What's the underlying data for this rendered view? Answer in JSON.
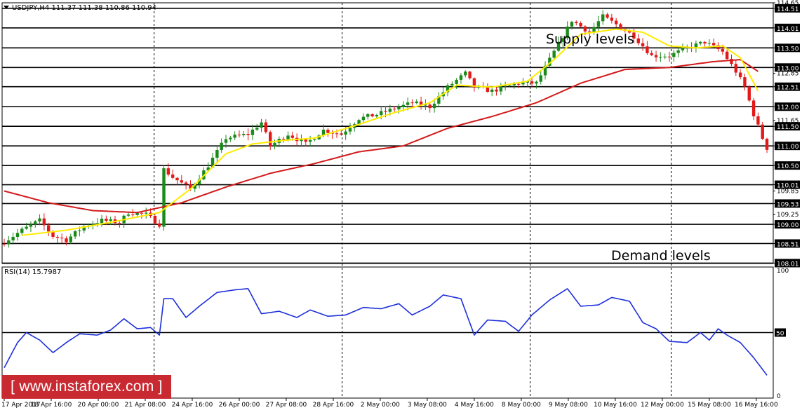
{
  "header": {
    "symbol_line": "USDJPY,H4  111.37 111.38 110.86 110.94",
    "rsi_label": "RSI(14) 15.7987"
  },
  "annotations": {
    "supply": "Supply levels",
    "demand": "Demand levels"
  },
  "watermark": {
    "text": "[ www.instaforex.com ]"
  },
  "colors": {
    "bull": "#1a8a1a",
    "bear": "#e31919",
    "fast_ma": "#ffeb00",
    "slow_ma": "#d21a1a",
    "rsi": "#1c2fd9",
    "levels": "#000000",
    "watermark_bg": "#c92a32"
  },
  "chart_data": [
    {
      "type": "candlestick",
      "symbol": "USDJPY",
      "timeframe": "H4",
      "ylim": [
        108.0,
        114.65
      ],
      "y_ticks": [
        "114.65",
        "114.51",
        "114.01",
        "113.50",
        "113.00",
        "112.85",
        "112.51",
        "112.00",
        "111.65",
        "111.50",
        "111.00",
        "110.50",
        "110.01",
        "109.85",
        "109.53",
        "109.25",
        "109.00",
        "108.51",
        "108.01"
      ],
      "level_lines": [
        114.51,
        114.01,
        113.5,
        113.0,
        112.51,
        112.0,
        111.5,
        111.0,
        110.5,
        110.01,
        109.53,
        109.0,
        108.51,
        108.01
      ],
      "x_labels": [
        "17 Apr 2017",
        "18 Apr 16:00",
        "20 Apr 00:00",
        "21 Apr 08:00",
        "24 Apr 16:00",
        "26 Apr 00:00",
        "27 Apr 08:00",
        "28 Apr 16:00",
        "2 May 00:00",
        "3 May 08:00",
        "4 May 16:00",
        "8 May 00:00",
        "9 May 08:00",
        "10 May 16:00",
        "12 May 00:00",
        "15 May 08:00",
        "16 May 16:00"
      ],
      "session_separators": [
        "21 Apr 08:00",
        "28 Apr 16:00",
        "8 May 00:00",
        "12 May 00:00"
      ],
      "close_keypoints": [
        {
          "t": 0,
          "v": 108.55
        },
        {
          "t": 4,
          "v": 108.85
        },
        {
          "t": 8,
          "v": 109.1
        },
        {
          "t": 11,
          "v": 108.7
        },
        {
          "t": 14,
          "v": 108.6
        },
        {
          "t": 18,
          "v": 108.95
        },
        {
          "t": 22,
          "v": 109.1
        },
        {
          "t": 26,
          "v": 109.05
        },
        {
          "t": 28,
          "v": 109.3
        },
        {
          "t": 32,
          "v": 109.25
        },
        {
          "t": 35,
          "v": 109.0
        },
        {
          "t": 36,
          "v": 110.4
        },
        {
          "t": 38,
          "v": 110.2
        },
        {
          "t": 42,
          "v": 109.9
        },
        {
          "t": 46,
          "v": 110.5
        },
        {
          "t": 50,
          "v": 111.2
        },
        {
          "t": 55,
          "v": 111.3
        },
        {
          "t": 58,
          "v": 111.6
        },
        {
          "t": 60,
          "v": 111.0
        },
        {
          "t": 64,
          "v": 111.3
        },
        {
          "t": 68,
          "v": 111.05
        },
        {
          "t": 72,
          "v": 111.4
        },
        {
          "t": 76,
          "v": 111.3
        },
        {
          "t": 80,
          "v": 111.7
        },
        {
          "t": 84,
          "v": 111.8
        },
        {
          "t": 88,
          "v": 111.95
        },
        {
          "t": 92,
          "v": 112.1
        },
        {
          "t": 96,
          "v": 112.0
        },
        {
          "t": 100,
          "v": 112.5
        },
        {
          "t": 104,
          "v": 112.85
        },
        {
          "t": 106,
          "v": 112.5
        },
        {
          "t": 110,
          "v": 112.4
        },
        {
          "t": 113,
          "v": 112.5
        },
        {
          "t": 116,
          "v": 112.6
        },
        {
          "t": 120,
          "v": 112.6
        },
        {
          "t": 124,
          "v": 113.4
        },
        {
          "t": 128,
          "v": 114.2
        },
        {
          "t": 132,
          "v": 113.9
        },
        {
          "t": 135,
          "v": 114.3
        },
        {
          "t": 138,
          "v": 114.1
        },
        {
          "t": 142,
          "v": 113.8
        },
        {
          "t": 146,
          "v": 113.3
        },
        {
          "t": 150,
          "v": 113.3
        },
        {
          "t": 154,
          "v": 113.5
        },
        {
          "t": 158,
          "v": 113.65
        },
        {
          "t": 162,
          "v": 113.4
        },
        {
          "t": 165,
          "v": 112.9
        },
        {
          "t": 167,
          "v": 112.5
        },
        {
          "t": 169,
          "v": 111.8
        },
        {
          "t": 171,
          "v": 111.2
        },
        {
          "t": 172,
          "v": 110.94
        }
      ],
      "fast_ma_keypoints": [
        {
          "t": 4,
          "v": 108.72
        },
        {
          "t": 14,
          "v": 108.85
        },
        {
          "t": 24,
          "v": 109.05
        },
        {
          "t": 35,
          "v": 109.3
        },
        {
          "t": 42,
          "v": 109.9
        },
        {
          "t": 50,
          "v": 110.8
        },
        {
          "t": 56,
          "v": 111.05
        },
        {
          "t": 64,
          "v": 111.15
        },
        {
          "t": 70,
          "v": 111.2
        },
        {
          "t": 80,
          "v": 111.55
        },
        {
          "t": 88,
          "v": 111.85
        },
        {
          "t": 96,
          "v": 112.1
        },
        {
          "t": 102,
          "v": 112.55
        },
        {
          "t": 110,
          "v": 112.5
        },
        {
          "t": 118,
          "v": 112.65
        },
        {
          "t": 124,
          "v": 113.2
        },
        {
          "t": 130,
          "v": 113.85
        },
        {
          "t": 138,
          "v": 113.98
        },
        {
          "t": 144,
          "v": 113.9
        },
        {
          "t": 150,
          "v": 113.55
        },
        {
          "t": 156,
          "v": 113.5
        },
        {
          "t": 162,
          "v": 113.55
        },
        {
          "t": 166,
          "v": 113.25
        },
        {
          "t": 170,
          "v": 112.4
        }
      ],
      "slow_ma_keypoints": [
        {
          "t": 0,
          "v": 109.85
        },
        {
          "t": 10,
          "v": 109.55
        },
        {
          "t": 20,
          "v": 109.35
        },
        {
          "t": 30,
          "v": 109.3
        },
        {
          "t": 40,
          "v": 109.55
        },
        {
          "t": 50,
          "v": 109.95
        },
        {
          "t": 60,
          "v": 110.3
        },
        {
          "t": 70,
          "v": 110.55
        },
        {
          "t": 80,
          "v": 110.85
        },
        {
          "t": 90,
          "v": 111.0
        },
        {
          "t": 100,
          "v": 111.45
        },
        {
          "t": 110,
          "v": 111.75
        },
        {
          "t": 120,
          "v": 112.1
        },
        {
          "t": 130,
          "v": 112.6
        },
        {
          "t": 140,
          "v": 112.95
        },
        {
          "t": 150,
          "v": 113.0
        },
        {
          "t": 160,
          "v": 113.15
        },
        {
          "t": 166,
          "v": 113.2
        },
        {
          "t": 170,
          "v": 112.9
        }
      ]
    },
    {
      "type": "line",
      "indicator": "RSI(14)",
      "ylim": [
        0,
        100
      ],
      "y_ticks": [
        "100",
        "50",
        "0"
      ],
      "level_lines": [
        50
      ],
      "series": [
        {
          "keypoints": [
            {
              "t": 0,
              "v": 22
            },
            {
              "t": 3,
              "v": 42
            },
            {
              "t": 5,
              "v": 50
            },
            {
              "t": 8,
              "v": 44
            },
            {
              "t": 11,
              "v": 34
            },
            {
              "t": 14,
              "v": 42
            },
            {
              "t": 17,
              "v": 49
            },
            {
              "t": 21,
              "v": 48
            },
            {
              "t": 24,
              "v": 52
            },
            {
              "t": 27,
              "v": 61
            },
            {
              "t": 30,
              "v": 53
            },
            {
              "t": 33,
              "v": 54
            },
            {
              "t": 35,
              "v": 48
            },
            {
              "t": 36,
              "v": 77
            },
            {
              "t": 38,
              "v": 77
            },
            {
              "t": 41,
              "v": 62
            },
            {
              "t": 44,
              "v": 71
            },
            {
              "t": 48,
              "v": 82
            },
            {
              "t": 52,
              "v": 84
            },
            {
              "t": 55,
              "v": 85
            },
            {
              "t": 58,
              "v": 65
            },
            {
              "t": 62,
              "v": 67
            },
            {
              "t": 66,
              "v": 62
            },
            {
              "t": 69,
              "v": 68
            },
            {
              "t": 73,
              "v": 63
            },
            {
              "t": 77,
              "v": 64
            },
            {
              "t": 81,
              "v": 70
            },
            {
              "t": 85,
              "v": 69
            },
            {
              "t": 89,
              "v": 73
            },
            {
              "t": 92,
              "v": 64
            },
            {
              "t": 96,
              "v": 71
            },
            {
              "t": 99,
              "v": 80
            },
            {
              "t": 103,
              "v": 77
            },
            {
              "t": 106,
              "v": 48
            },
            {
              "t": 109,
              "v": 60
            },
            {
              "t": 113,
              "v": 59
            },
            {
              "t": 116,
              "v": 51
            },
            {
              "t": 119,
              "v": 64
            },
            {
              "t": 123,
              "v": 76
            },
            {
              "t": 127,
              "v": 85
            },
            {
              "t": 130,
              "v": 71
            },
            {
              "t": 134,
              "v": 72
            },
            {
              "t": 137,
              "v": 78
            },
            {
              "t": 141,
              "v": 75
            },
            {
              "t": 144,
              "v": 58
            },
            {
              "t": 147,
              "v": 53
            },
            {
              "t": 150,
              "v": 43
            },
            {
              "t": 154,
              "v": 42
            },
            {
              "t": 157,
              "v": 50
            },
            {
              "t": 159,
              "v": 44
            },
            {
              "t": 161,
              "v": 53
            },
            {
              "t": 163,
              "v": 48
            },
            {
              "t": 166,
              "v": 42
            },
            {
              "t": 169,
              "v": 30
            },
            {
              "t": 172,
              "v": 16
            }
          ]
        }
      ]
    }
  ]
}
